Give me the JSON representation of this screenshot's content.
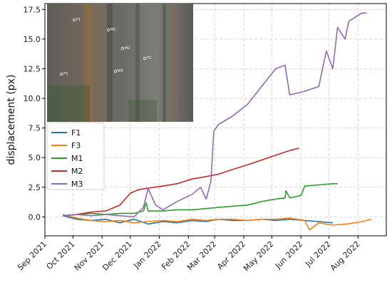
{
  "chart_data": {
    "type": "line",
    "title": "",
    "ylabel": "displacement (px)",
    "xlabel": "",
    "ylim": [
      -1.6,
      18.0
    ],
    "yticks": [
      0.0,
      2.5,
      5.0,
      7.5,
      10.0,
      12.5,
      15.0,
      17.5
    ],
    "ytick_labels": [
      "0.0",
      "2.5",
      "5.0",
      "7.5",
      "10.0",
      "12.5",
      "15.0",
      "17.5"
    ],
    "xlim": [
      "2021-09-01",
      "2022-08-31"
    ],
    "xticks": [
      "2021-09-01",
      "2021-10-01",
      "2021-11-01",
      "2021-12-01",
      "2022-01-01",
      "2022-02-01",
      "2022-03-01",
      "2022-04-01",
      "2022-05-01",
      "2022-06-01",
      "2022-07-01",
      "2022-08-01"
    ],
    "xtick_labels": [
      "Sep 2021",
      "Oct 2021",
      "Nov 2021",
      "Dec 2021",
      "Jan 2022",
      "Feb 2022",
      "Mar 2022",
      "Apr 2022",
      "May 2022",
      "Jun 2022",
      "Jul 2022",
      "Aug 2022"
    ],
    "grid": true,
    "legend_position": "left, below inset photo",
    "inset": {
      "content": "photo of columnar rock wall with marked points",
      "point_labels": [
        "F1",
        "M1",
        "M2",
        "F2",
        "F3",
        "M3"
      ]
    },
    "series": [
      {
        "name": "F1",
        "color": "#1f77b4",
        "x": [
          "2021-09-20",
          "2021-10-05",
          "2021-10-20",
          "2021-11-05",
          "2021-11-20",
          "2021-12-05",
          "2021-12-20",
          "2022-01-05",
          "2022-01-20",
          "2022-02-05",
          "2022-02-20",
          "2022-03-05",
          "2022-03-20",
          "2022-04-05",
          "2022-04-20",
          "2022-05-05",
          "2022-05-20",
          "2022-06-05",
          "2022-06-20",
          "2022-07-05"
        ],
        "y": [
          0.1,
          -0.2,
          -0.3,
          -0.2,
          -0.5,
          -0.2,
          -0.6,
          -0.4,
          -0.5,
          -0.3,
          -0.4,
          -0.2,
          -0.3,
          -0.3,
          -0.2,
          -0.3,
          -0.2,
          -0.3,
          -0.4,
          -0.5
        ]
      },
      {
        "name": "F3",
        "color": "#ff7f0e",
        "x": [
          "2021-09-20",
          "2021-10-05",
          "2021-10-20",
          "2021-11-05",
          "2021-11-20",
          "2021-12-05",
          "2021-12-20",
          "2022-01-05",
          "2022-01-20",
          "2022-02-05",
          "2022-02-20",
          "2022-03-05",
          "2022-03-20",
          "2022-04-05",
          "2022-04-20",
          "2022-05-05",
          "2022-05-20",
          "2022-06-05",
          "2022-06-10",
          "2022-06-20",
          "2022-07-05",
          "2022-07-20",
          "2022-08-05",
          "2022-08-15"
        ],
        "y": [
          0.2,
          -0.1,
          -0.3,
          -0.4,
          -0.3,
          -0.5,
          -0.4,
          -0.3,
          -0.4,
          -0.2,
          -0.3,
          -0.2,
          -0.2,
          -0.3,
          -0.2,
          -0.2,
          -0.1,
          -0.3,
          -1.1,
          -0.5,
          -0.7,
          -0.6,
          -0.4,
          -0.2
        ]
      },
      {
        "name": "M1",
        "color": "#2ca02c",
        "x": [
          "2021-09-20",
          "2021-10-05",
          "2021-10-20",
          "2021-11-05",
          "2021-11-20",
          "2021-12-05",
          "2021-12-15",
          "2021-12-18",
          "2021-12-20",
          "2022-01-05",
          "2022-01-20",
          "2022-02-05",
          "2022-02-20",
          "2022-03-05",
          "2022-03-20",
          "2022-04-05",
          "2022-04-20",
          "2022-05-05",
          "2022-05-15",
          "2022-05-16",
          "2022-05-20",
          "2022-06-01",
          "2022-06-05",
          "2022-06-20",
          "2022-07-05",
          "2022-07-10"
        ],
        "y": [
          0.1,
          0.2,
          0.3,
          0.2,
          0.3,
          0.3,
          0.5,
          1.2,
          0.5,
          0.5,
          0.6,
          0.6,
          0.7,
          0.8,
          0.9,
          1.0,
          1.3,
          1.5,
          1.6,
          2.2,
          1.6,
          1.8,
          2.6,
          2.7,
          2.8,
          2.8
        ]
      },
      {
        "name": "M2",
        "color": "#d62728",
        "x": [
          "2021-09-20",
          "2021-10-05",
          "2021-10-20",
          "2021-11-05",
          "2021-11-20",
          "2021-12-01",
          "2021-12-10",
          "2022-01-05",
          "2022-01-20",
          "2022-02-05",
          "2022-02-20",
          "2022-03-05",
          "2022-03-20",
          "2022-04-05",
          "2022-04-20",
          "2022-05-05",
          "2022-05-20",
          "2022-05-30"
        ],
        "y": [
          0.1,
          0.2,
          0.4,
          0.5,
          1.0,
          2.0,
          2.3,
          2.6,
          2.8,
          3.2,
          3.4,
          3.6,
          4.0,
          4.4,
          4.8,
          5.2,
          5.6,
          5.8
        ]
      },
      {
        "name": "M3",
        "color": "#9467bd",
        "x": [
          "2021-09-20",
          "2021-10-05",
          "2021-10-20",
          "2021-11-05",
          "2021-11-20",
          "2021-12-05",
          "2021-12-15",
          "2021-12-20",
          "2021-12-28",
          "2022-01-05",
          "2022-01-20",
          "2022-02-05",
          "2022-02-14",
          "2022-02-20",
          "2022-02-25",
          "2022-02-28",
          "2022-03-05",
          "2022-03-20",
          "2022-04-05",
          "2022-04-15",
          "2022-04-25",
          "2022-05-05",
          "2022-05-15",
          "2022-05-20",
          "2022-06-05",
          "2022-06-20",
          "2022-06-28",
          "2022-07-05",
          "2022-07-10",
          "2022-07-18",
          "2022-07-22",
          "2022-08-01",
          "2022-08-05",
          "2022-08-10"
        ],
        "y": [
          0.1,
          0.2,
          0.1,
          0.2,
          0.1,
          0.0,
          0.8,
          2.4,
          1.0,
          0.6,
          1.3,
          1.9,
          2.5,
          1.5,
          3.0,
          7.2,
          7.8,
          8.5,
          9.5,
          10.5,
          11.5,
          12.5,
          12.8,
          10.3,
          10.6,
          11.0,
          14.0,
          12.5,
          16.0,
          15.0,
          16.5,
          17.0,
          17.2,
          17.2
        ]
      }
    ]
  }
}
